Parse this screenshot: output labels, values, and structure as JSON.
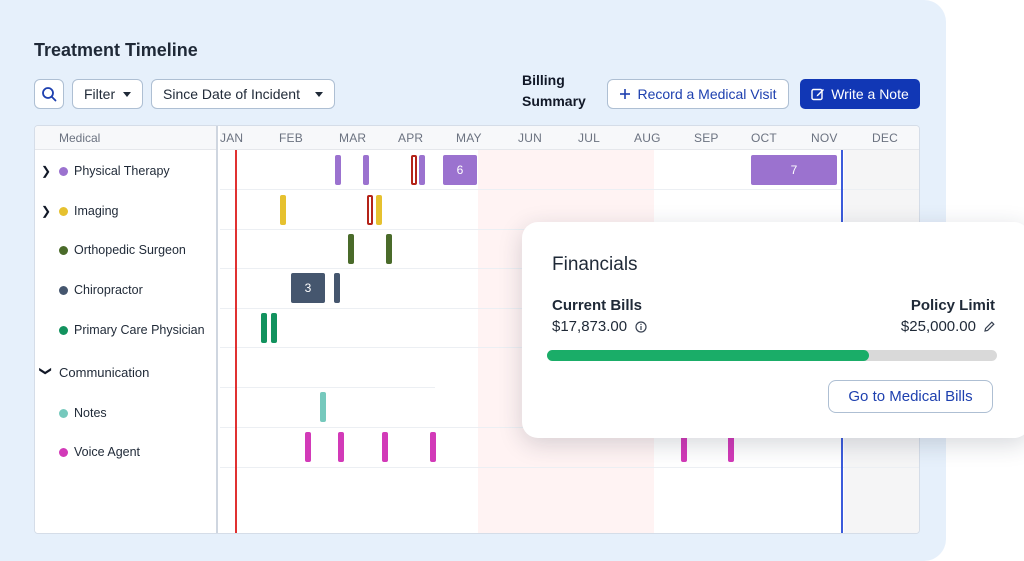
{
  "header": {
    "title": "Treatment Timeline",
    "filter_label": "Filter",
    "range_label": "Since Date of Incident",
    "billing_line1": "Billing",
    "billing_line2": "Summary",
    "record_label": "Record a Medical Visit",
    "note_label": "Write a Note"
  },
  "timeline": {
    "column_header": "Medical",
    "months": [
      "JAN",
      "FEB",
      "MAR",
      "APR",
      "MAY",
      "JUN",
      "JUL",
      "AUG",
      "SEP",
      "OCT",
      "NOV",
      "DEC"
    ],
    "rows": [
      {
        "label": "Physical Therapy",
        "color": "#9b72cf",
        "expandable": true
      },
      {
        "label": "Imaging",
        "color": "#e6c12f",
        "expandable": true
      },
      {
        "label": "Orthopedic Surgeon",
        "color": "#4a6b2a",
        "expandable": false
      },
      {
        "label": "Chiropractor",
        "color": "#45566e",
        "expandable": false
      },
      {
        "label": "Primary Care Physician",
        "color": "#12925e",
        "expandable": false
      }
    ],
    "communication": {
      "label": "Communication",
      "rows": [
        {
          "label": "Notes",
          "color": "#76c9bd"
        },
        {
          "label": "Voice Agent",
          "color": "#d23ab8"
        }
      ]
    },
    "blocks": {
      "physical_therapy_a": "6",
      "physical_therapy_b": "7",
      "chiropractor": "3"
    }
  },
  "financials": {
    "title": "Financials",
    "current_label": "Current Bills",
    "current_value": "$17,873.00",
    "limit_label": "Policy Limit",
    "limit_value": "$25,000.00",
    "progress_fraction": 0.715,
    "button_label": "Go to Medical Bills"
  },
  "colors": {
    "accent": "#1137b5",
    "incident_line": "#e03131",
    "today_line": "#3b5bdb",
    "progress": "#1aad68"
  }
}
